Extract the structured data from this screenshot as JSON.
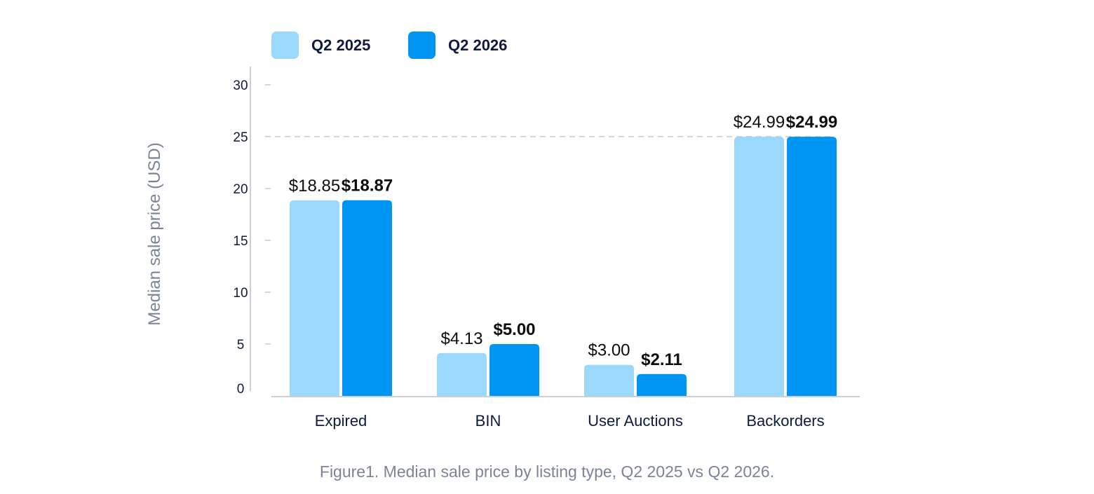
{
  "colors": {
    "series_2025": "#9ad8fc",
    "series_2026": "#0095f2",
    "axis": "#b8bfcc",
    "text": "#0d1b3e",
    "muted": "#7a8499"
  },
  "chart_data": {
    "type": "bar",
    "categories": [
      "Expired",
      "BIN",
      "User Auctions",
      "Backorders"
    ],
    "series": [
      {
        "name": "Q2 2025",
        "values": [
          18.85,
          4.13,
          3.0,
          24.99
        ],
        "labels": [
          "$18.85",
          "$4.13",
          "$3.00",
          "$24.99"
        ]
      },
      {
        "name": "Q2 2026",
        "values": [
          18.87,
          5.0,
          2.11,
          24.99
        ],
        "labels": [
          "$18.87",
          "$5.00",
          "$2.11",
          "$24.99"
        ]
      }
    ],
    "ylabel": "Median sale price (USD)",
    "xlabel": "",
    "ylim": [
      0,
      30
    ],
    "yticks": [
      0,
      5,
      10,
      15,
      20,
      25,
      30
    ],
    "reference_line": 25,
    "legend_position": "top-left"
  },
  "caption": "Figure1. Median sale price by listing type, Q2 2025 vs Q2 2026."
}
